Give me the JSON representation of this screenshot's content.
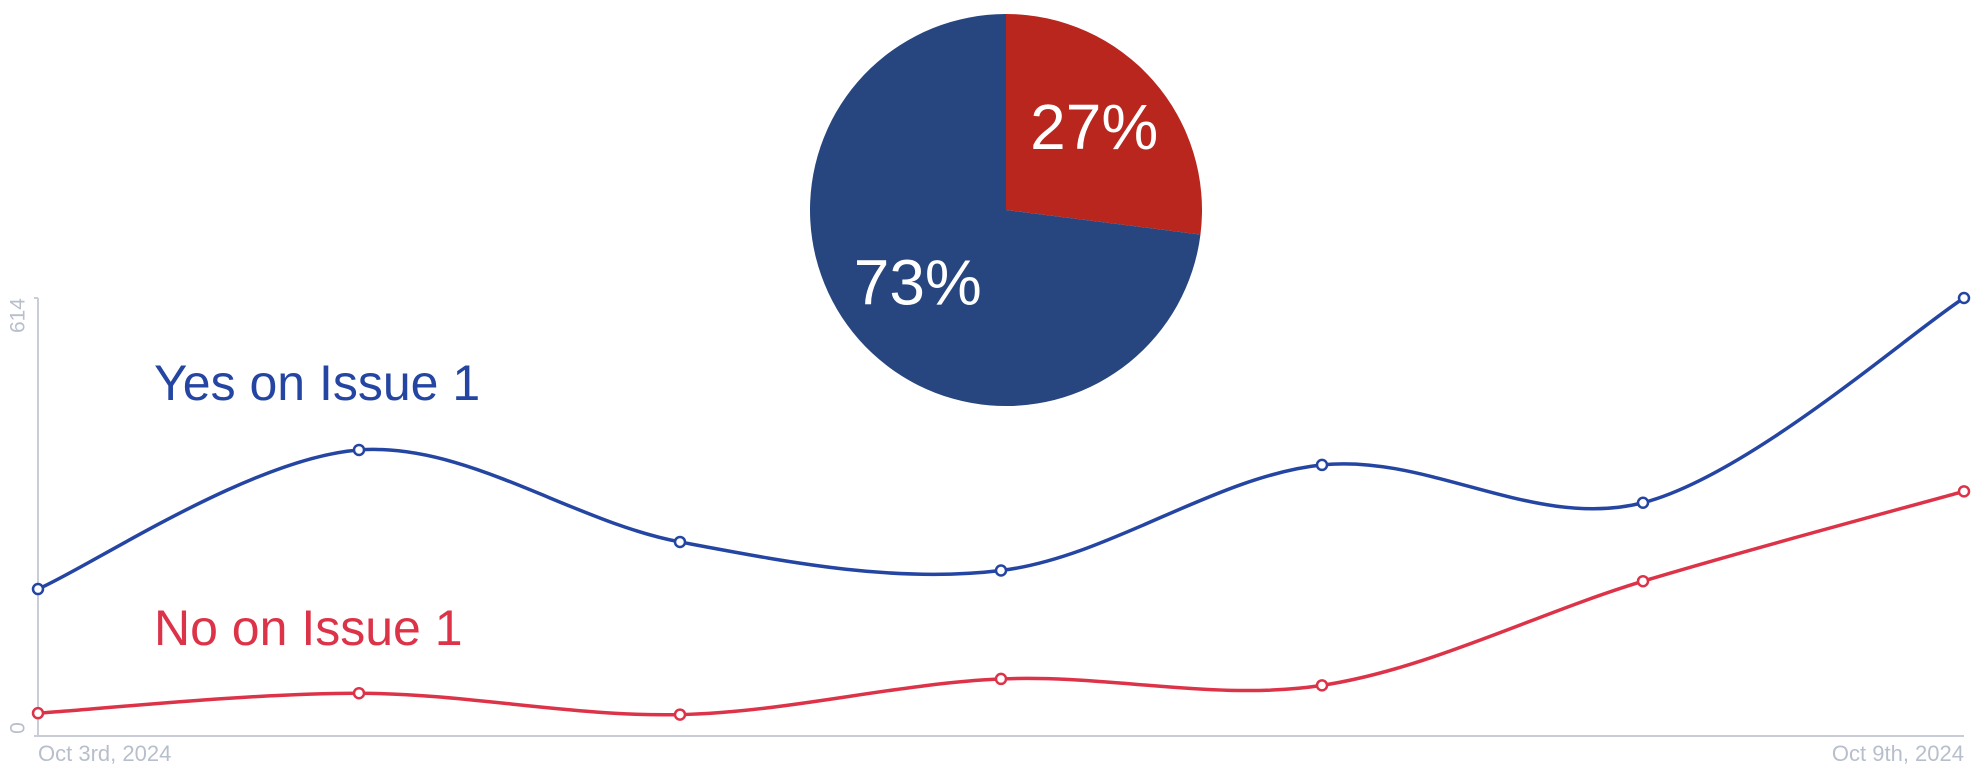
{
  "chart_data": [
    {
      "type": "pie",
      "values": [
        27,
        73
      ],
      "value_labels": [
        "27%",
        "73%"
      ],
      "colors": [
        "#b8261d",
        "#27457f"
      ]
    },
    {
      "type": "line",
      "x": [
        "Oct 3rd, 2024",
        null,
        null,
        null,
        null,
        null,
        "Oct 9th, 2024"
      ],
      "ylim": [
        0,
        614
      ],
      "yticks": [
        0,
        614
      ],
      "series": [
        {
          "name": "Yes on Issue 1",
          "color": "#2445a2",
          "values": [
            206,
            401,
            272,
            232,
            380,
            327,
            614
          ]
        },
        {
          "name": "No on Issue 1",
          "color": "#dc3349",
          "values": [
            32,
            60,
            30,
            80,
            71,
            217,
            343
          ]
        }
      ]
    }
  ]
}
